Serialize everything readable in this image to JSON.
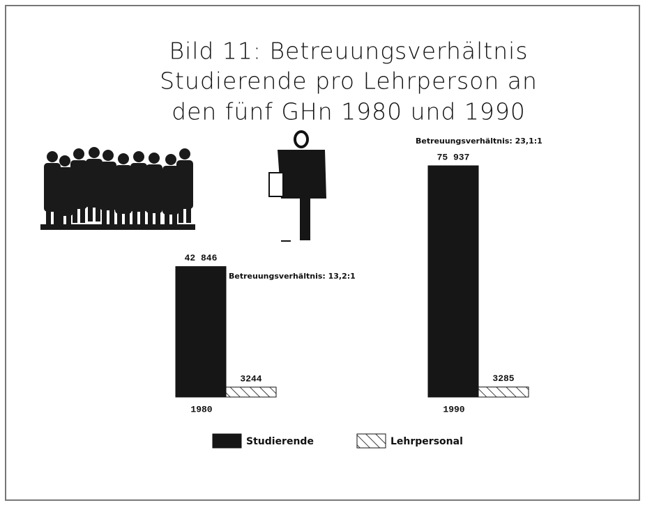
{
  "chart_data": {
    "type": "bar",
    "title": [
      "Bild 11: Betreuungsverhältnis",
      "Studierende pro Lehrperson an",
      "den fünf GHn 1980 und 1990"
    ],
    "categories": [
      "1980",
      "1990"
    ],
    "series": [
      {
        "name": "Studierende",
        "color": "#161616",
        "values": [
          42846,
          75937
        ],
        "value_labels": [
          "42 846",
          "75 937"
        ]
      },
      {
        "name": "Lehrpersonal",
        "color": "hatch",
        "values": [
          3244,
          3285
        ],
        "value_labels": [
          "3244",
          "3285"
        ]
      }
    ],
    "annotations": [
      "Betreuungsverhältnis: 13,2:1",
      "Betreuungsverhältnis: 23,1:1"
    ]
  }
}
